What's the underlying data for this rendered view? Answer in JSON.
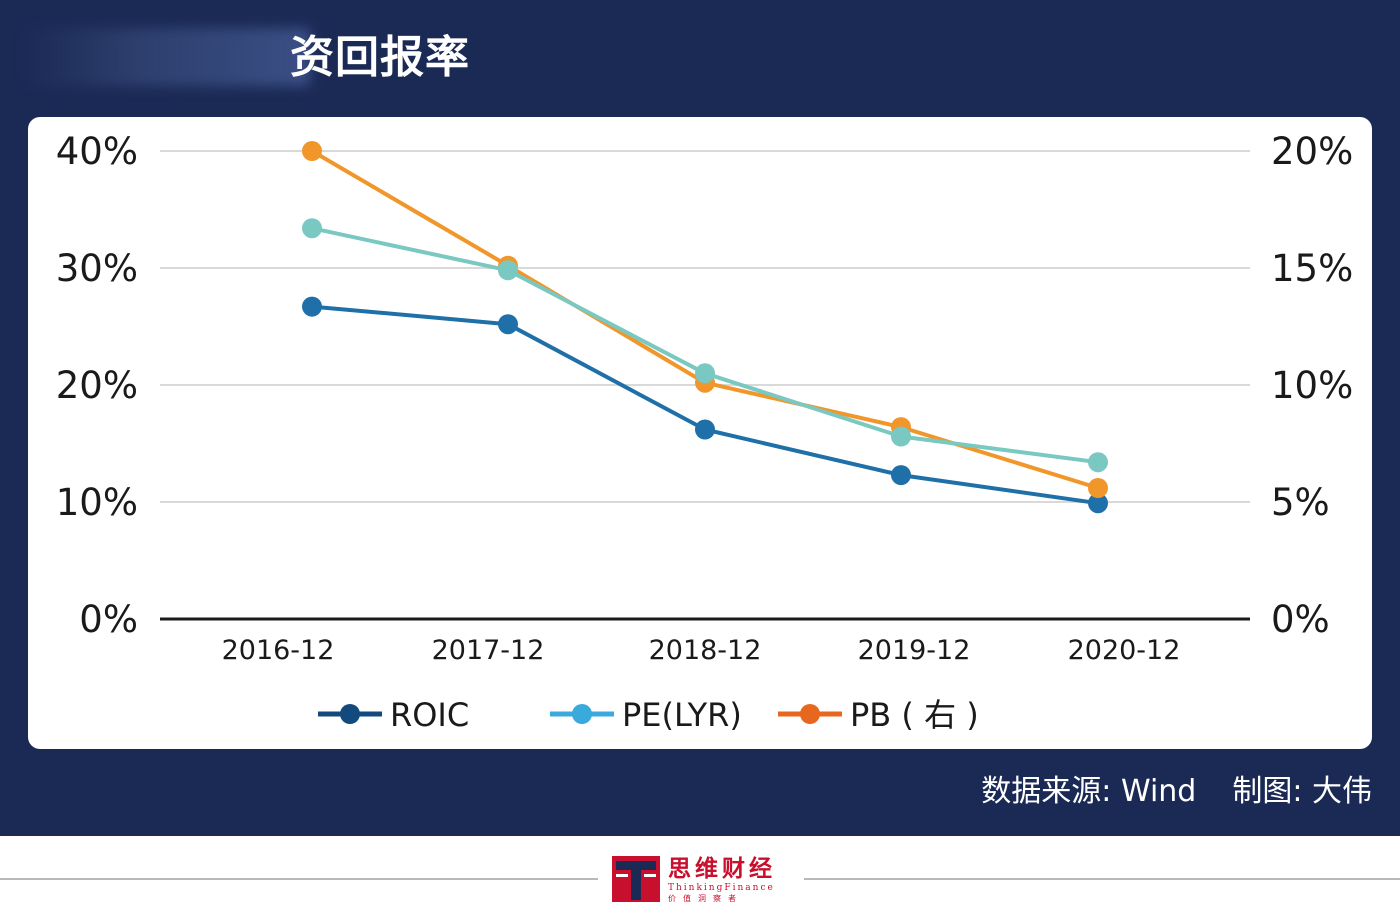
{
  "header": {
    "title": "资回报率"
  },
  "footer": {
    "source": "数据来源: Wind",
    "author": "制图: 大伟"
  },
  "logo": {
    "name": "思维财经",
    "subtitle": "ThinkingFinance",
    "tagline": "价值洞察者"
  },
  "colors": {
    "banner": "#1b2a55",
    "roic": "#1f6fa8",
    "roic_legend": "#134a7d",
    "pe": "#79c8c2",
    "pe_legend": "#3aa9dc",
    "pb": "#f1962b",
    "pb_legend": "#e8671f",
    "logo_red": "#c8102e"
  },
  "chart_data": {
    "type": "line",
    "x": [
      "2016-12",
      "2017-12",
      "2018-12",
      "2019-12",
      "2020-12"
    ],
    "y_left": {
      "ticks": [
        "0%",
        "10%",
        "20%",
        "30%",
        "40%"
      ],
      "range": [
        0,
        40
      ]
    },
    "y_right": {
      "ticks": [
        "0%",
        "5%",
        "10%",
        "15%",
        "20%"
      ],
      "range": [
        0,
        20
      ]
    },
    "series": [
      {
        "name": "ROIC",
        "axis": "left",
        "values": [
          26.7,
          25.2,
          16.2,
          12.3,
          9.9
        ]
      },
      {
        "name": "PE(LYR)",
        "axis": "left",
        "values": [
          33.4,
          29.8,
          21.0,
          15.6,
          13.4
        ]
      },
      {
        "name": "PB(右)",
        "axis": "right",
        "values": [
          20.0,
          15.1,
          10.1,
          8.2,
          5.6
        ]
      }
    ],
    "legend_labels": {
      "roic": "ROIC",
      "pe": "PE(LYR)",
      "pb": "PB ( 右 )"
    },
    "grid": true,
    "legend_position": "bottom"
  }
}
